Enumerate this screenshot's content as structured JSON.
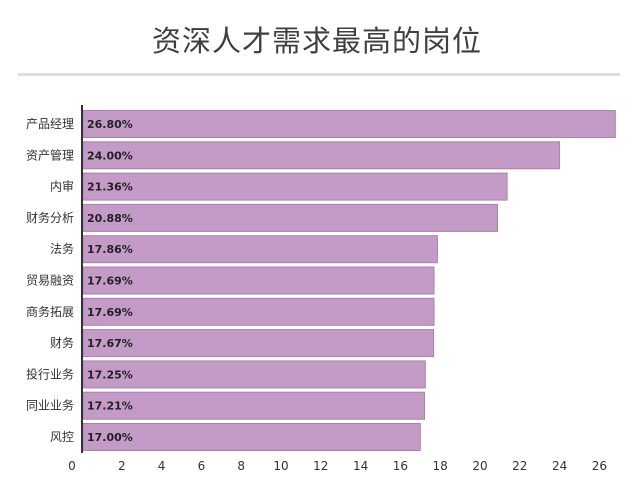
{
  "title": "资深人才需求最高的岗位",
  "colors": {
    "bar": "#c39bc6",
    "bar_stroke": "#a980ad",
    "axis": "#333333",
    "rule": "#dedede"
  },
  "chart_data": {
    "type": "bar",
    "orientation": "horizontal",
    "title": "资深人才需求最高的岗位",
    "xlabel": "",
    "ylabel": "",
    "xlim": [
      0,
      27
    ],
    "xticks": [
      0,
      2,
      4,
      6,
      8,
      10,
      12,
      14,
      16,
      18,
      20,
      22,
      24,
      26
    ],
    "grid": false,
    "categories": [
      "产品经理",
      "资产管理",
      "内审",
      "财务分析",
      "法务",
      "贸易融资",
      "商务拓展",
      "财务",
      "投行业务",
      "同业业务",
      "风控"
    ],
    "values": [
      26.8,
      24.0,
      21.36,
      20.88,
      17.86,
      17.69,
      17.69,
      17.67,
      17.25,
      17.21,
      17.0
    ],
    "value_labels": [
      "26.80%",
      "24.00%",
      "21.36%",
      "20.88%",
      "17.86%",
      "17.69%",
      "17.69%",
      "17.67%",
      "17.25%",
      "17.21%",
      "17.00%"
    ]
  }
}
